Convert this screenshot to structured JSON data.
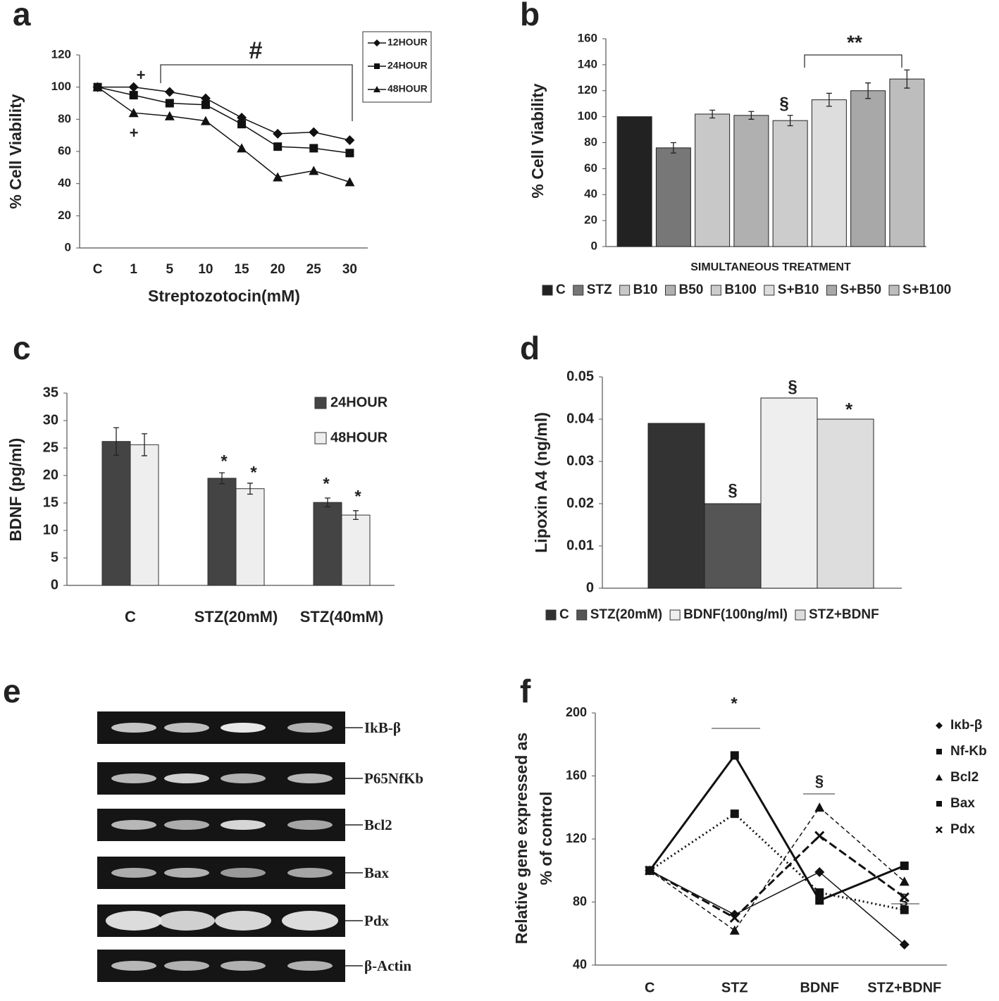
{
  "chart_data": [
    {
      "type": "line",
      "panel": "a",
      "xlabel": "Streptozotocin(mM)",
      "ylabel": "% Cell Viability",
      "categories": [
        "C",
        "1",
        "5",
        "10",
        "15",
        "20",
        "25",
        "30"
      ],
      "series": [
        {
          "name": "12HOUR",
          "color": "#111111",
          "marker": "diamond",
          "line_style": "solid",
          "values": [
            100,
            100,
            97,
            93,
            81,
            71,
            72,
            67
          ]
        },
        {
          "name": "24HOUR",
          "color": "#111111",
          "marker": "square",
          "line_style": "solid",
          "values": [
            100,
            95,
            90,
            89,
            77,
            63,
            62,
            59
          ]
        },
        {
          "name": "48HOUR",
          "color": "#111111",
          "marker": "triangle",
          "line_style": "solid",
          "values": [
            100,
            84,
            82,
            79,
            62,
            44,
            48,
            41
          ]
        }
      ],
      "ylim": [
        0,
        120
      ],
      "yticks": [
        0,
        20,
        40,
        60,
        80,
        100,
        120
      ],
      "legend": "upper right",
      "annotations": [
        "#",
        "+",
        "+"
      ]
    },
    {
      "type": "bar",
      "panel": "b",
      "xlabel": "SIMULTANEOUS TREATMENT",
      "ylabel": "% Cell Viability",
      "categories": [
        "C",
        "STZ",
        "B10",
        "B50",
        "B100",
        "S+B10",
        "S+B50",
        "S+B100"
      ],
      "values": [
        100,
        76,
        102,
        101,
        97,
        113,
        120,
        129
      ],
      "errors": [
        0,
        4,
        3,
        3,
        4,
        5,
        6,
        7
      ],
      "colors": [
        "#222222",
        "#777777",
        "#c8c8c8",
        "#b0b0b0",
        "#cccccc",
        "#dddddd",
        "#a8a8a8",
        "#bdbdbd"
      ],
      "ylim": [
        0,
        160
      ],
      "yticks": [
        0,
        20,
        40,
        60,
        80,
        100,
        120,
        140,
        160
      ],
      "legend": "bottom",
      "annotations": [
        "§",
        "**"
      ]
    },
    {
      "type": "bar",
      "panel": "c",
      "ylabel": "BDNF (pg/ml)",
      "categories": [
        "C",
        "STZ(20mM)",
        "STZ(40mM)"
      ],
      "series": [
        {
          "name": "24HOUR",
          "color": "#444444",
          "values": [
            26.2,
            19.5,
            15.1
          ],
          "errors": [
            2.5,
            1.0,
            0.8
          ]
        },
        {
          "name": "48HOUR",
          "color": "#eeeeee",
          "values": [
            25.6,
            17.6,
            12.8
          ],
          "errors": [
            2.0,
            1.0,
            0.8
          ]
        }
      ],
      "ylim": [
        0,
        35
      ],
      "yticks": [
        0,
        5,
        10,
        15,
        20,
        25,
        30,
        35
      ],
      "legend": "upper right",
      "annotations": [
        "*",
        "*",
        "*",
        "*"
      ]
    },
    {
      "type": "bar",
      "panel": "d",
      "ylabel": "Lipoxin A4 (ng/ml)",
      "categories": [
        "C",
        "STZ(20mM)",
        "BDNF(100ng/ml)",
        "STZ+BDNF"
      ],
      "values": [
        0.039,
        0.02,
        0.045,
        0.04
      ],
      "colors": [
        "#333333",
        "#555555",
        "#eeeeee",
        "#dddddd"
      ],
      "ylim": [
        0,
        0.05
      ],
      "yticks": [
        0,
        0.01,
        0.02,
        0.03,
        0.04,
        0.05
      ],
      "legend": "bottom",
      "annotations": [
        "§",
        "§",
        "*"
      ]
    },
    {
      "type": "gel",
      "panel": "e",
      "labels": [
        "IkB-β",
        "P65NfKb",
        "Bcl2",
        "Bax",
        "Pdx",
        "β-Actin"
      ]
    },
    {
      "type": "line",
      "panel": "f",
      "ylabel": [
        "Relative gene expressed as",
        "% of  control"
      ],
      "categories": [
        "C",
        "STZ",
        "BDNF",
        "STZ+BDNF"
      ],
      "series": [
        {
          "name": "Iκb-β",
          "color": "#111111",
          "marker": "diamond",
          "line_style": "solid",
          "values": [
            100,
            72,
            99,
            53
          ]
        },
        {
          "name": "Nf-Kb",
          "color": "#111111",
          "marker": "square",
          "line_style": "thick",
          "values": [
            100,
            173,
            81,
            103
          ]
        },
        {
          "name": "Bcl2",
          "color": "#111111",
          "marker": "triangle",
          "line_style": "dashed",
          "values": [
            100,
            62,
            140,
            93
          ]
        },
        {
          "name": "Bax",
          "color": "#111111",
          "marker": "square",
          "line_style": "dotted",
          "values": [
            100,
            136,
            86,
            75
          ]
        },
        {
          "name": "Pdx",
          "color": "#111111",
          "marker": "x",
          "line_style": "longdash",
          "values": [
            100,
            70,
            122,
            83
          ]
        }
      ],
      "ylim": [
        40,
        200
      ],
      "yticks": [
        40,
        80,
        120,
        160,
        200
      ],
      "legend": "upper right",
      "annotations": [
        "*",
        "§",
        "§"
      ]
    }
  ]
}
